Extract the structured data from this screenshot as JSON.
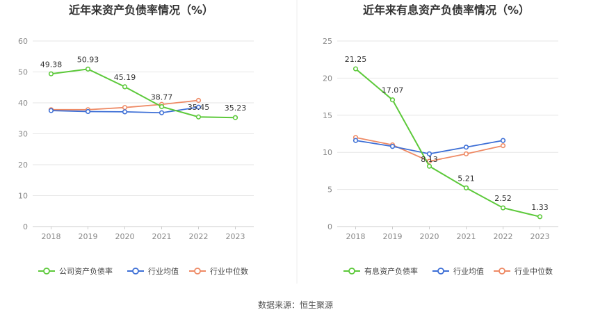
{
  "source_text": "数据来源：恒生聚源",
  "colors": {
    "company": "#5cc93a",
    "industry_avg": "#3d6fd6",
    "industry_median": "#ee8a65",
    "grid": "#e6e6e6",
    "axis": "#cccccc",
    "divider": "#eeeeee"
  },
  "chart_data": [
    {
      "type": "line",
      "title": "近年来资产负债率情况（%）",
      "categories": [
        "2018",
        "2019",
        "2020",
        "2021",
        "2022",
        "2023"
      ],
      "ylim": [
        0,
        60
      ],
      "yticks": [
        0,
        10,
        20,
        30,
        40,
        50,
        60
      ],
      "grid": true,
      "legend_position": "bottom",
      "series": [
        {
          "name": "公司资产负债率",
          "values": [
            49.38,
            50.93,
            45.19,
            38.77,
            35.45,
            35.23
          ],
          "labels": [
            "49.38",
            "50.93",
            "45.19",
            "38.77",
            "35.45",
            "35.23"
          ]
        },
        {
          "name": "行业均值",
          "values": [
            37.5,
            37.2,
            37.1,
            36.8,
            38.6,
            null
          ]
        },
        {
          "name": "行业中位数",
          "values": [
            37.8,
            37.8,
            38.5,
            39.5,
            40.8,
            null
          ]
        }
      ]
    },
    {
      "type": "line",
      "title": "近年来有息资产负债率情况（%）",
      "categories": [
        "2018",
        "2019",
        "2020",
        "2021",
        "2022",
        "2023"
      ],
      "ylim": [
        0,
        25
      ],
      "yticks": [
        0,
        5,
        10,
        15,
        20,
        25
      ],
      "grid": true,
      "legend_position": "bottom",
      "series": [
        {
          "name": "有息资产负债率",
          "values": [
            21.25,
            17.07,
            8.13,
            5.21,
            2.52,
            1.33
          ],
          "labels": [
            "21.25",
            "17.07",
            "8.13",
            "5.21",
            "2.52",
            "1.33"
          ]
        },
        {
          "name": "行业均值",
          "values": [
            11.6,
            10.8,
            9.8,
            10.7,
            11.6,
            null
          ]
        },
        {
          "name": "行业中位数",
          "values": [
            12.0,
            11.0,
            8.8,
            9.8,
            10.9,
            null
          ]
        }
      ]
    }
  ]
}
